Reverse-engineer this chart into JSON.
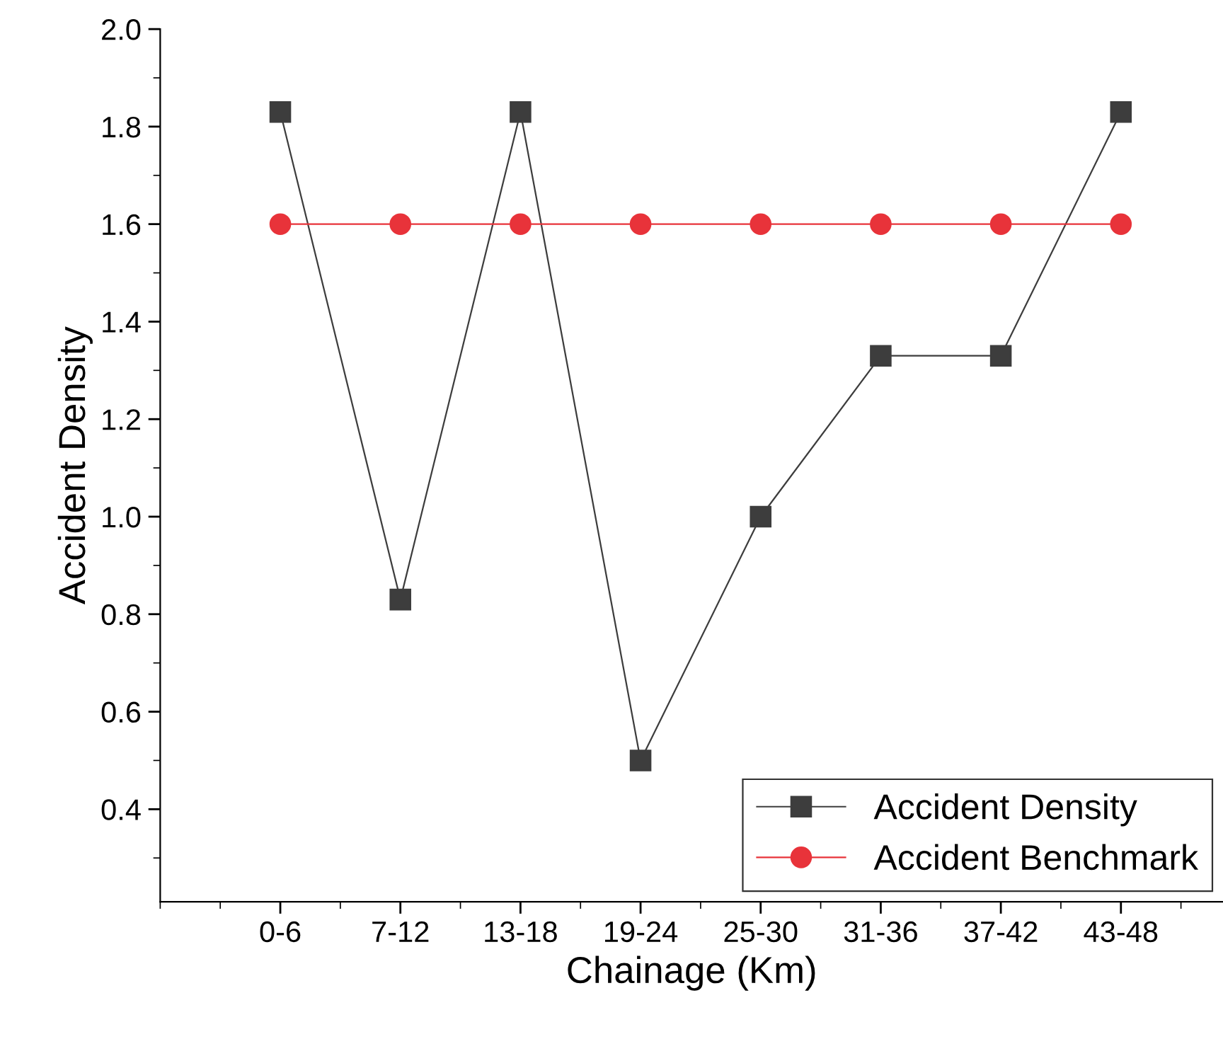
{
  "chart_data": {
    "type": "line",
    "xlabel": "Chainage (Km)",
    "ylabel": "Accident Density",
    "categories": [
      "0-6",
      "7-12",
      "13-18",
      "19-24",
      "25-30",
      "31-36",
      "37-42",
      "43-48"
    ],
    "series": [
      {
        "name": "Accident Density",
        "color": "#3d3d3d",
        "marker": "square",
        "values": [
          1.83,
          0.83,
          1.83,
          0.5,
          1.0,
          1.33,
          1.33,
          1.83
        ]
      },
      {
        "name": "Accident Benchmark",
        "color": "#e8333a",
        "marker": "circle",
        "values": [
          1.6,
          1.6,
          1.6,
          1.6,
          1.6,
          1.6,
          1.6,
          1.6
        ]
      }
    ],
    "ylim": [
      0.21,
      2.0
    ],
    "yticks": [
      0.4,
      0.6,
      0.8,
      {
        "value": 1,
        "label": "1.0"
      },
      1.2,
      1.4,
      1.6,
      1.8,
      {
        "value": 2,
        "label": "2.0"
      }
    ],
    "legend": "bottom right",
    "grid": false,
    "line_style": "solid"
  }
}
